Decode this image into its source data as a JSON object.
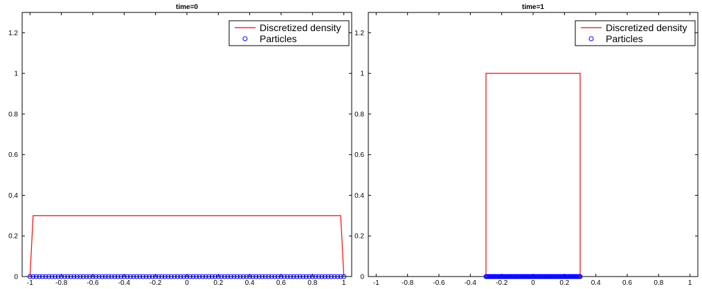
{
  "chart_data": [
    {
      "type": "line",
      "title": "time=0",
      "xlabel": "",
      "ylabel": "",
      "xlim": [
        -1.05,
        1.05
      ],
      "ylim": [
        0,
        1.3
      ],
      "xticks": [
        -1,
        -0.8,
        -0.6,
        -0.4,
        -0.2,
        0,
        0.2,
        0.4,
        0.6,
        0.8,
        1
      ],
      "xtick_labels": [
        "-1",
        "-0.8",
        "-0.6",
        "-0.4",
        "-0.2",
        "0",
        "0.2",
        "0.4",
        "0.6",
        "0.8",
        "1"
      ],
      "yticks": [
        0,
        0.2,
        0.4,
        0.6,
        0.8,
        1,
        1.2
      ],
      "ytick_labels": [
        "0",
        "0.2",
        "0.4",
        "0.6",
        "0.8",
        "1",
        "1.2"
      ],
      "grid": false,
      "legend_position": "top-right",
      "series": [
        {
          "name": "Discretized density",
          "color": "#ff0000",
          "kind": "line",
          "x": [
            -1,
            -0.98,
            0.98,
            1
          ],
          "y": [
            0,
            0.3,
            0.3,
            0
          ]
        },
        {
          "name": "Particles",
          "color": "#0000ff",
          "kind": "scatter",
          "x_range": [
            -1,
            1
          ],
          "count": 101,
          "y": 0
        }
      ]
    },
    {
      "type": "line",
      "title": "time=1",
      "xlabel": "",
      "ylabel": "",
      "xlim": [
        -1.05,
        1.05
      ],
      "ylim": [
        0,
        1.3
      ],
      "xticks": [
        -1,
        -0.8,
        -0.6,
        -0.4,
        -0.2,
        0,
        0.2,
        0.4,
        0.6,
        0.8,
        1
      ],
      "xtick_labels": [
        "-1",
        "-0.8",
        "-0.6",
        "-0.4",
        "-0.2",
        "0",
        "0.2",
        "0.4",
        "0.6",
        "0.8",
        "1"
      ],
      "yticks": [
        0,
        0.2,
        0.4,
        0.6,
        0.8,
        1,
        1.2
      ],
      "ytick_labels": [
        "0",
        "0.2",
        "0.4",
        "0.6",
        "0.8",
        "1",
        "1.2"
      ],
      "grid": false,
      "legend_position": "top-right",
      "series": [
        {
          "name": "Discretized density",
          "color": "#ff0000",
          "kind": "line",
          "x": [
            -0.3,
            -0.3,
            0.3,
            0.3
          ],
          "y": [
            0,
            1,
            1,
            0
          ]
        },
        {
          "name": "Particles",
          "color": "#0000ff",
          "kind": "scatter",
          "x_range": [
            -0.3,
            0.3
          ],
          "count": 101,
          "y": 0
        }
      ]
    }
  ]
}
